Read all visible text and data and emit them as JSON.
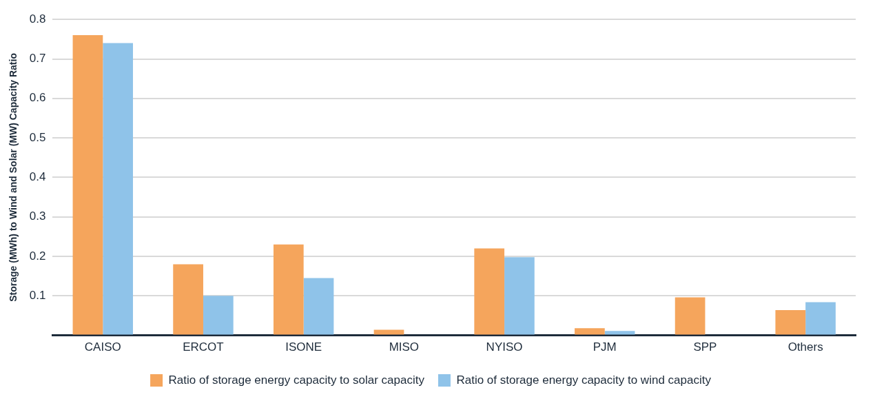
{
  "chart_data": {
    "type": "bar",
    "ylabel": "Storage (MWh) to Wind and Solar (MW) Capacity Ratio",
    "categories": [
      "CAISO",
      "ERCOT",
      "ISONE",
      "MISO",
      "NYISO",
      "PJM",
      "SPP",
      "Others"
    ],
    "series": [
      {
        "name": "Ratio of storage energy capacity to solar capacity",
        "color": "#f5a55c",
        "values": [
          0.76,
          0.18,
          0.23,
          0.014,
          0.22,
          0.018,
          0.096,
          0.064
        ]
      },
      {
        "name": "Ratio of storage energy capacity to wind capacity",
        "color": "#8fc3e9",
        "values": [
          0.74,
          0.1,
          0.145,
          null,
          0.198,
          0.011,
          0,
          0.084
        ]
      }
    ],
    "ylim": [
      0,
      0.8
    ],
    "yticks": [
      {
        "value": 0,
        "label": null
      },
      0.1,
      0.2,
      0.3,
      0.4,
      0.5,
      0.6,
      0.7,
      0.8
    ],
    "grid": "y",
    "legend": "bottom"
  }
}
